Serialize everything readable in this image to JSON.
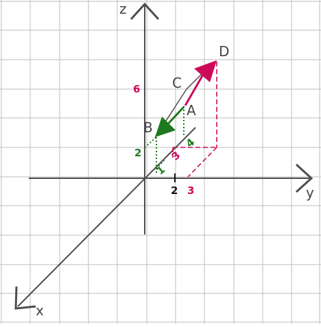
{
  "colors": {
    "grid": "#bdbdbd",
    "axis": "#4d4d4d",
    "green": "#1f7a1f",
    "magenta": "#cc0a5a",
    "black": "#111111"
  },
  "axes": {
    "x": "x",
    "y": "y",
    "z": "z"
  },
  "points": {
    "A": "A",
    "B": "B",
    "C": "C",
    "D": "D"
  },
  "dimensions": {
    "green_2": "2",
    "green_1": "1",
    "green_4": "4",
    "magenta_3_inner": "3",
    "magenta_3_axis": "3",
    "magenta_6": "6",
    "black_2": "2"
  }
}
